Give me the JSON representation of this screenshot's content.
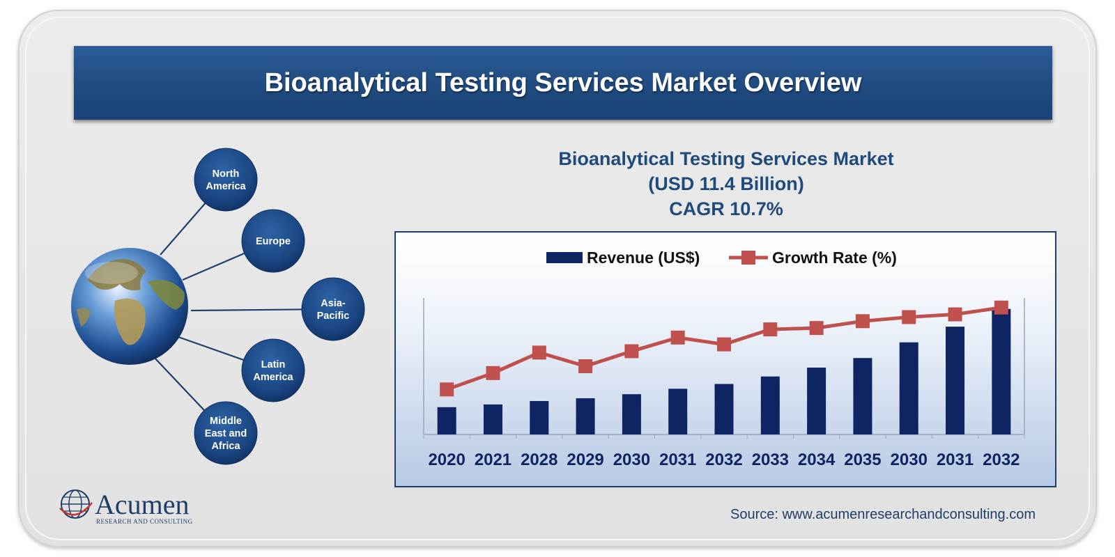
{
  "title": "Bioanalytical Testing Services Market Overview",
  "regions": [
    {
      "id": "north-america",
      "lines": [
        "North",
        "America"
      ]
    },
    {
      "id": "europe",
      "lines": [
        "Europe"
      ]
    },
    {
      "id": "asia-pacific",
      "lines": [
        "Asia-",
        "Pacific"
      ]
    },
    {
      "id": "latin-america",
      "lines": [
        "Latin",
        "America"
      ]
    },
    {
      "id": "middle-east-africa",
      "lines": [
        "Middle",
        "East and",
        "Africa"
      ]
    }
  ],
  "logo": {
    "name": "Acumen",
    "tagline": "RESEARCH AND CONSULTING"
  },
  "source": "Source: www.acumenresearchandconsulting.com",
  "colors": {
    "banner": "#234f86",
    "bar": "#0f2463",
    "line": "#c0504d",
    "region": "#1e4a82",
    "text": "#1f4a7c"
  },
  "chart_data": {
    "type": "bar",
    "title_lines": [
      "Bioanalytical Testing Services Market",
      "(USD 11.4 Billion)",
      "CAGR 10.7%"
    ],
    "categories": [
      "2020",
      "2021",
      "2028",
      "2029",
      "2030",
      "2031",
      "2032",
      "2033",
      "2034",
      "2035",
      "2030",
      "2031",
      "2032"
    ],
    "series": [
      {
        "name": "Revenue (US$)",
        "type": "bar",
        "values": [
          2.0,
          2.2,
          2.45,
          2.65,
          2.95,
          3.35,
          3.7,
          4.25,
          4.9,
          5.6,
          6.75,
          7.9,
          9.2
        ]
      },
      {
        "name": "Growth Rate (%)",
        "type": "line",
        "values": [
          3.3,
          4.5,
          6.0,
          5.0,
          6.1,
          7.1,
          6.6,
          7.7,
          7.8,
          8.3,
          8.6,
          8.8,
          9.3
        ]
      }
    ],
    "ylim": [
      0,
      10
    ],
    "legend": "top-center",
    "grid": false
  }
}
